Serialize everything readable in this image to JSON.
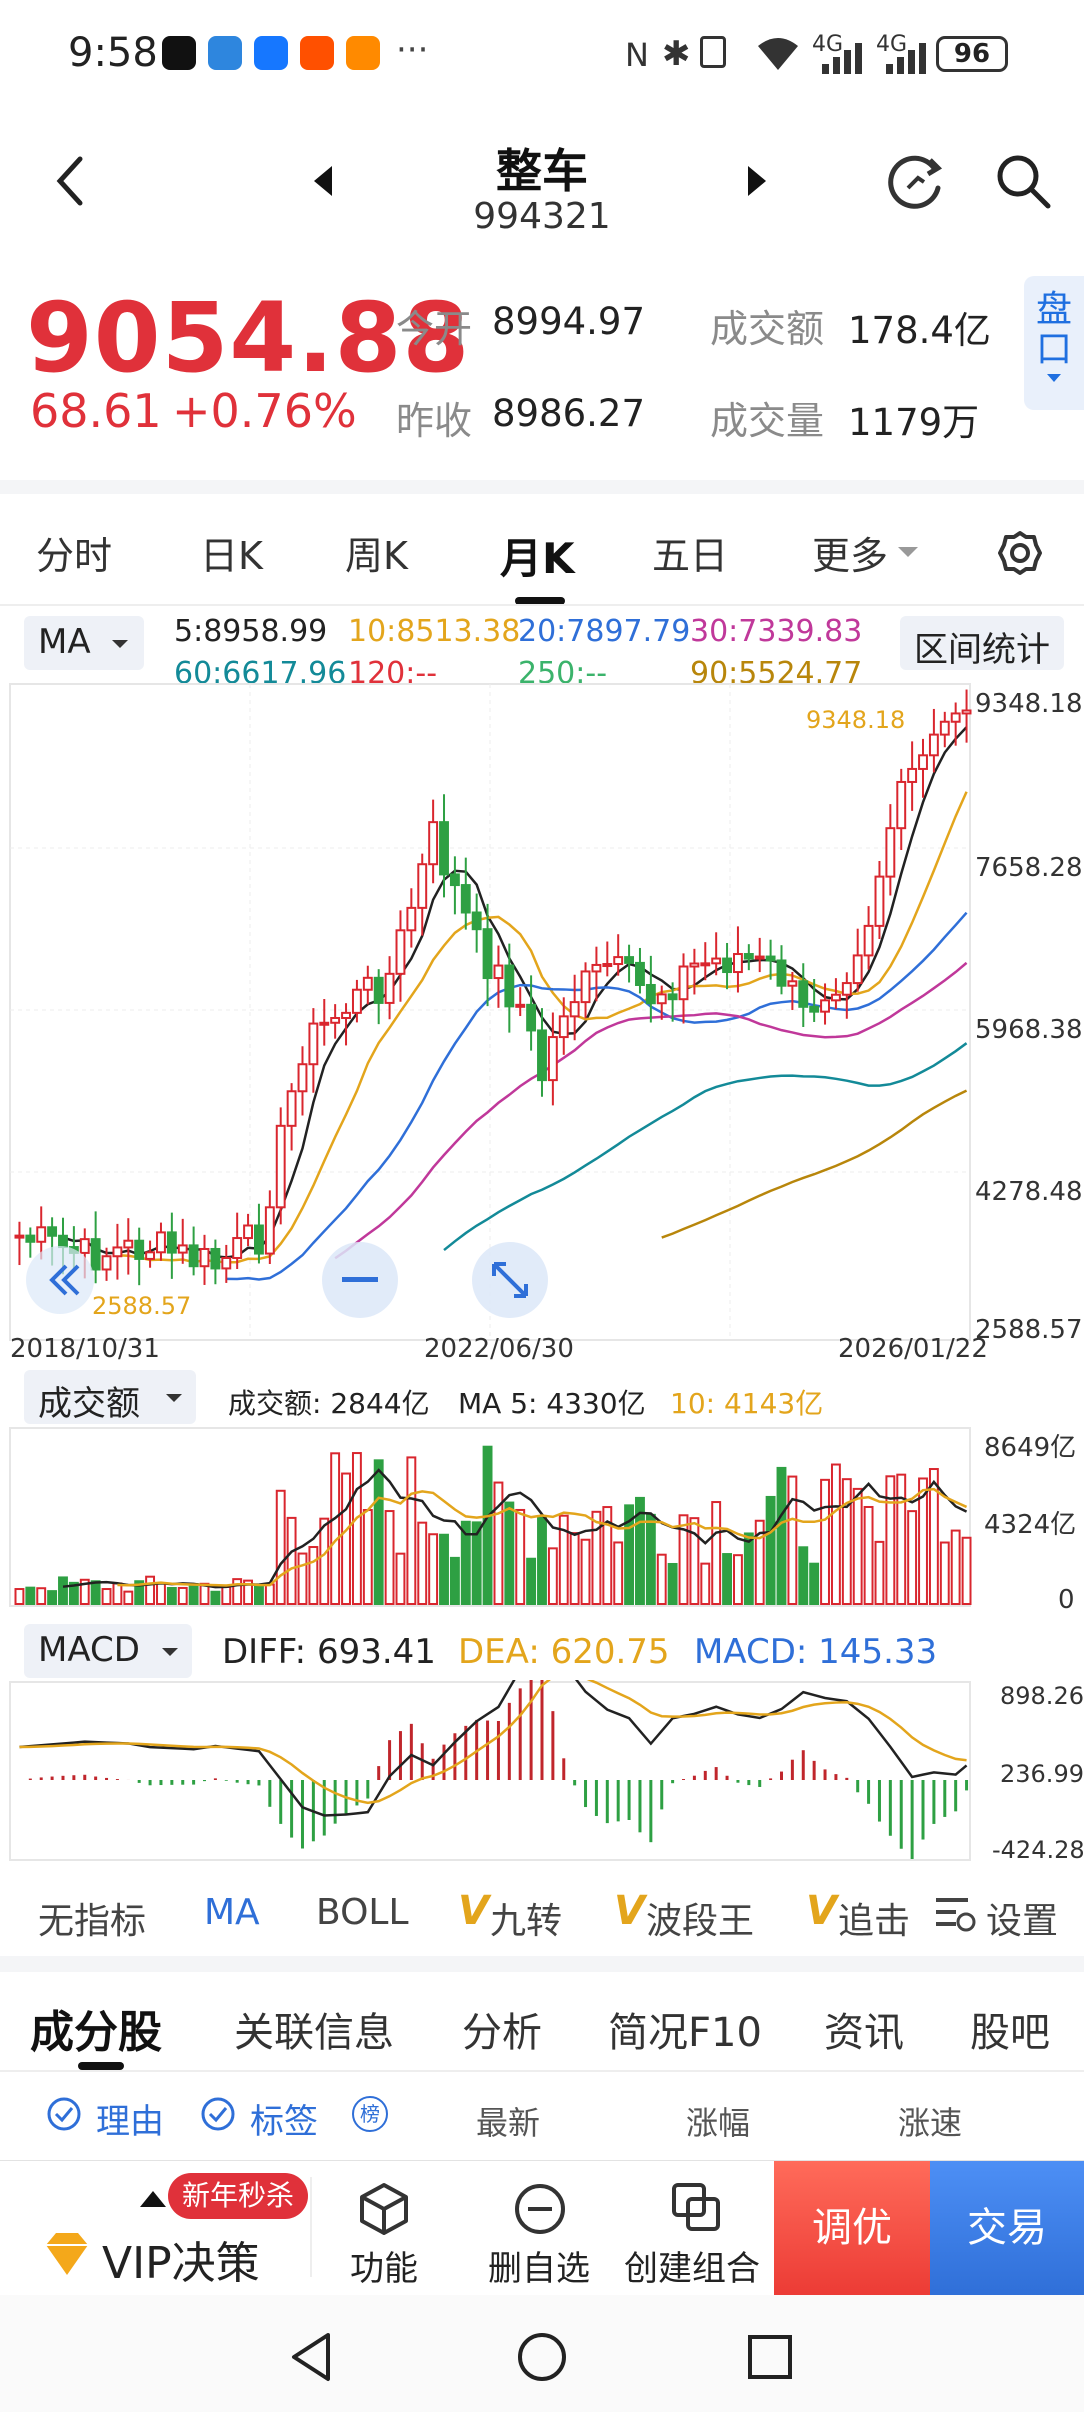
{
  "status": {
    "time": "9:58",
    "signal1": "4G",
    "signal2": "4G",
    "battery": "96",
    "dots": "···"
  },
  "header": {
    "title": "整车",
    "code": "994321"
  },
  "quote": {
    "price": "9054.88",
    "change": "68.61",
    "change_pct": "+0.76%",
    "open_label": "今开",
    "open": "8994.97",
    "prev_label": "昨收",
    "prev": "8986.27",
    "amount_label": "成交额",
    "amount": "178.4亿",
    "volume_label": "成交量",
    "volume": "1179万",
    "panel_btn": "盘口"
  },
  "tabs": [
    "分时",
    "日K",
    "周K",
    "月K",
    "五日",
    "更多"
  ],
  "ma": {
    "selector": "MA",
    "ma5": "5:8958.99",
    "ma10": "10:8513.38",
    "ma20": "20:7897.79",
    "ma30": "30:7339.83",
    "ma60": "60:6617.96",
    "ma120": "120:--",
    "ma250": "250:--",
    "ma90": "90:5524.77",
    "range_btn": "区间统计"
  },
  "chart_data": {
    "type": "candlestick",
    "y_ticks": [
      "9348.18",
      "7658.28",
      "5968.38",
      "4278.48",
      "2588.57"
    ],
    "x_ticks": [
      "2018/10/31",
      "2022/06/30",
      "2026/01/22"
    ],
    "high_label": "9348.18",
    "low_label": "2588.57",
    "colors": {
      "up": "#d9262e",
      "down": "#2ea043",
      "ma5": "#222222",
      "ma10": "#e3a51c",
      "ma20": "#2f6fd8",
      "ma30": "#c0389a",
      "ma60": "#138a98",
      "ma90": "#b8860b"
    },
    "volume": {
      "label": "成交额",
      "value": "成交额: 2844亿",
      "ma5": "MA 5: 4330亿",
      "ma10": "10: 4143亿",
      "ticks": [
        "8649亿",
        "4324亿",
        "0"
      ]
    },
    "macd": {
      "label": "MACD",
      "diff": "DIFF: 693.41",
      "dea": "DEA: 620.75",
      "macd": "MACD: 145.33",
      "ticks": [
        "898.26",
        "236.99",
        "-424.28"
      ]
    }
  },
  "indicators": [
    "无指标",
    "MA",
    "BOLL",
    "九转",
    "波段王",
    "追击",
    "设置"
  ],
  "sections": [
    "成分股",
    "关联信息",
    "分析",
    "简况F10",
    "资讯",
    "股吧"
  ],
  "list_header": {
    "reason": "理由",
    "tag": "标签",
    "rank": "榜",
    "latest": "最新",
    "change": "涨幅",
    "speed": "涨速"
  },
  "bottom": {
    "promo": "新年秒杀",
    "vip": "VIP决策",
    "func": "功能",
    "del": "删自选",
    "combo": "创建组合",
    "tune": "调优",
    "trade": "交易"
  }
}
